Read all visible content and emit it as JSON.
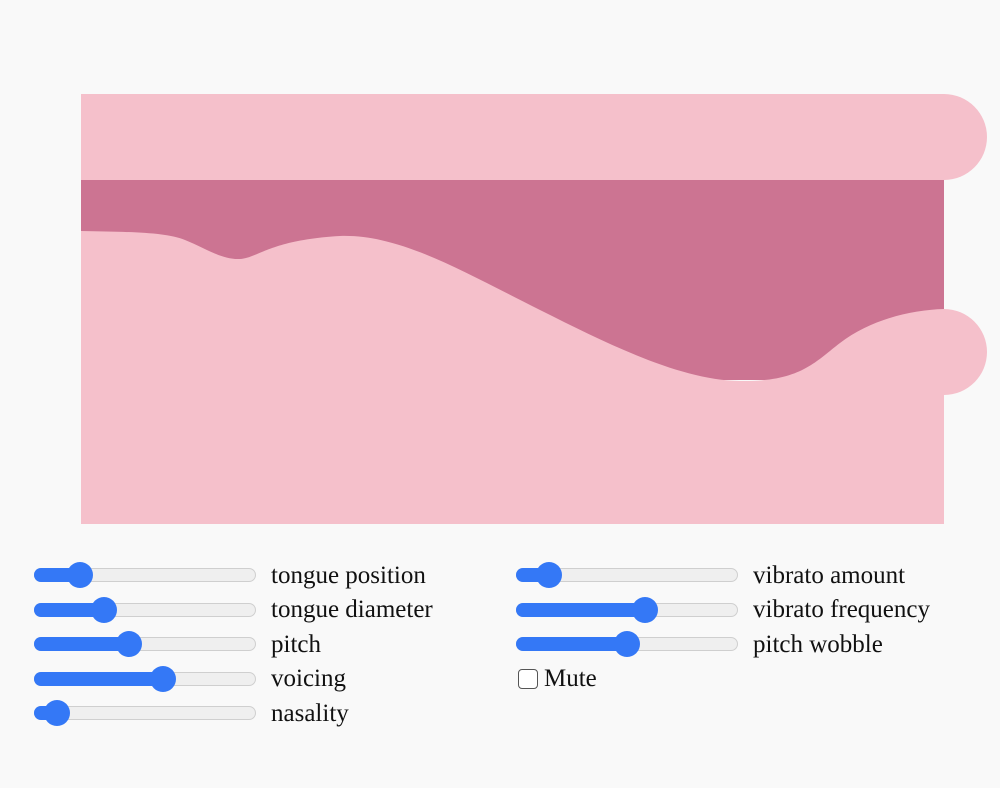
{
  "colors": {
    "background": "#f9f9f9",
    "tract_light": "#f5c0cb",
    "tract_dark": "#cc7492",
    "slider_accent": "#3478f6",
    "slider_track": "#efefef"
  },
  "sliders_left": [
    {
      "label": "tongue position",
      "value": 0.17
    },
    {
      "label": "tongue diameter",
      "value": 0.29
    },
    {
      "label": "pitch",
      "value": 0.42
    },
    {
      "label": "voicing",
      "value": 0.59
    },
    {
      "label": "nasality",
      "value": 0.05
    }
  ],
  "sliders_right": [
    {
      "label": "vibrato amount",
      "value": 0.1
    },
    {
      "label": "vibrato frequency",
      "value": 0.59
    },
    {
      "label": "pitch wobble",
      "value": 0.5
    }
  ],
  "mute": {
    "label": "Mute",
    "checked": false
  }
}
